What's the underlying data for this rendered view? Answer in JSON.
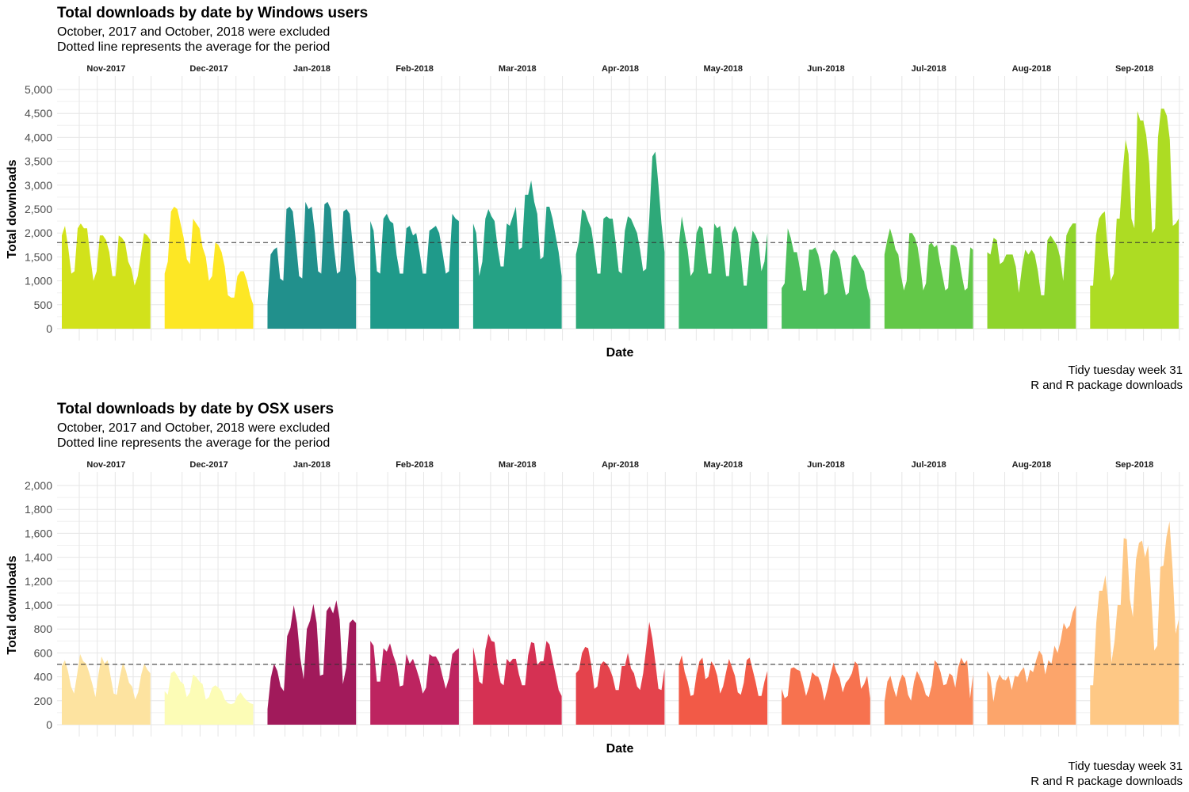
{
  "chart_data": [
    {
      "type": "area",
      "title": "Total downloads by date by Windows users",
      "subtitle_lines": [
        "October, 2017 and October, 2018 were excluded",
        "Dotted line represents the average for the period"
      ],
      "xlabel": "Date",
      "ylabel": "Total downloads",
      "caption_lines": [
        "Tidy tuesday week 31",
        "R and R package downloads"
      ],
      "ylim": [
        0,
        5300
      ],
      "yticks": [
        0,
        500,
        1000,
        1500,
        2000,
        2500,
        3000,
        3500,
        4000,
        4500,
        5000
      ],
      "yticklabels": [
        "0",
        "500",
        "1,000",
        "1,500",
        "2,000",
        "2,500",
        "3,000",
        "3,500",
        "4,000",
        "4,500",
        "5,000"
      ],
      "average": 1800,
      "grid": true,
      "legend": "none",
      "facets": [
        {
          "label": "Nov-2017",
          "color": "#d2e21b",
          "values": [
            1950,
            2150,
            1700,
            1150,
            1200,
            2100,
            2200,
            2100,
            2100,
            1500,
            1000,
            1200,
            1950,
            1950,
            1850,
            1600,
            1100,
            1100,
            1950,
            1900,
            1800,
            1400,
            1250,
            900,
            1100,
            1550,
            2000,
            1950,
            1850
          ]
        },
        {
          "label": "Dec-2017",
          "color": "#fde725",
          "values": [
            1150,
            1400,
            2450,
            2550,
            2500,
            2200,
            1900,
            1450,
            1350,
            2300,
            2200,
            2100,
            1700,
            1500,
            1000,
            1100,
            1800,
            1750,
            1600,
            1300,
            700,
            650,
            650,
            1100,
            1200,
            1200,
            1000,
            700,
            500
          ]
        },
        {
          "label": "Jan-2018",
          "color": "#21908c",
          "values": [
            550,
            1550,
            1650,
            1700,
            1050,
            1000,
            2500,
            2550,
            2450,
            1800,
            1100,
            1050,
            2650,
            2500,
            2550,
            2000,
            1200,
            1150,
            2600,
            2650,
            2500,
            1700,
            1150,
            1200,
            2450,
            2500,
            2400,
            1700,
            1050
          ]
        },
        {
          "label": "Feb-2018",
          "color": "#1f9a8a",
          "values": [
            2250,
            2050,
            1200,
            1150,
            2300,
            2400,
            2250,
            2200,
            1550,
            1150,
            1150,
            2100,
            2150,
            1950,
            2000,
            1600,
            1150,
            1150,
            2050,
            2100,
            2150,
            2000,
            1600,
            1150,
            1200,
            2400,
            2300,
            2250
          ]
        },
        {
          "label": "Mar-2018",
          "color": "#25a285",
          "values": [
            2200,
            2000,
            1100,
            1400,
            2300,
            2500,
            2350,
            2250,
            1700,
            1300,
            1300,
            2200,
            2150,
            2350,
            2550,
            1650,
            1700,
            2800,
            2800,
            3100,
            2650,
            2400,
            1450,
            1500,
            2550,
            2550,
            2300,
            1950,
            1600,
            1100
          ]
        },
        {
          "label": "Apr-2018",
          "color": "#2ea979",
          "values": [
            1550,
            1850,
            2500,
            2450,
            2250,
            2100,
            1650,
            1150,
            1150,
            2300,
            2350,
            2300,
            2300,
            1800,
            1200,
            1150,
            2050,
            2350,
            2300,
            2150,
            2000,
            1650,
            1200,
            1250,
            2300,
            3600,
            3700,
            3000,
            2200,
            1600
          ]
        },
        {
          "label": "May-2018",
          "color": "#3bb56b",
          "values": [
            1750,
            2350,
            2000,
            1650,
            1100,
            1200,
            2000,
            2150,
            2100,
            1600,
            1150,
            1150,
            2200,
            2100,
            2150,
            1700,
            1100,
            1100,
            2000,
            2150,
            2000,
            1550,
            900,
            900,
            1600,
            2050,
            1950,
            1800,
            1200,
            1400,
            2000
          ]
        },
        {
          "label": "Jun-2018",
          "color": "#4cbf5c",
          "values": [
            850,
            950,
            2100,
            1900,
            1600,
            1600,
            1250,
            800,
            800,
            1650,
            1650,
            1700,
            1550,
            1250,
            700,
            750,
            1550,
            1650,
            1600,
            1450,
            1050,
            700,
            750,
            1500,
            1550,
            1450,
            1300,
            1200,
            850,
            600
          ]
        },
        {
          "label": "Jul-2018",
          "color": "#63c848",
          "values": [
            1550,
            1850,
            2100,
            1900,
            1650,
            1550,
            1100,
            800,
            1000,
            2000,
            2000,
            1900,
            1700,
            1300,
            800,
            950,
            1750,
            1800,
            1700,
            1750,
            1400,
            1100,
            800,
            850,
            1750,
            1750,
            1700,
            1450,
            1100,
            800,
            850,
            1700,
            1650
          ]
        },
        {
          "label": "Aug-2018",
          "color": "#8fd42c",
          "values": [
            1600,
            1550,
            1900,
            1850,
            1350,
            1400,
            1550,
            1550,
            1550,
            1300,
            750,
            1300,
            1650,
            1550,
            1650,
            1550,
            1200,
            700,
            700,
            1850,
            1950,
            1850,
            1750,
            1500,
            1000,
            1950,
            2100,
            2200,
            2200
          ]
        },
        {
          "label": "Sep-2018",
          "color": "#addc23",
          "values": [
            900,
            900,
            1950,
            2300,
            2400,
            2450,
            1600,
            1000,
            1150,
            2300,
            2300,
            3250,
            3950,
            3650,
            2300,
            2100,
            4550,
            4350,
            4350,
            4050,
            3450,
            2000,
            2100,
            4000,
            4600,
            4600,
            4450,
            3950,
            2150,
            2200,
            2300
          ]
        }
      ]
    },
    {
      "type": "area",
      "title": "Total downloads by date by OSX users",
      "subtitle_lines": [
        "October, 2017 and October, 2018 were excluded",
        "Dotted line represents the average for the period"
      ],
      "xlabel": "Date",
      "ylabel": "Total downloads",
      "caption_lines": [
        "Tidy tuesday week 31",
        "R and R package downloads"
      ],
      "ylim": [
        0,
        2100
      ],
      "yticks": [
        0,
        200,
        400,
        600,
        800,
        1000,
        1200,
        1400,
        1600,
        1800,
        2000
      ],
      "yticklabels": [
        "0",
        "200",
        "400",
        "600",
        "800",
        "1,000",
        "1,200",
        "1,400",
        "1,600",
        "1,800",
        "2,000"
      ],
      "average": 505,
      "grid": true,
      "legend": "none",
      "facets": [
        {
          "label": "Nov-2017",
          "color": "#fde3a0",
          "values": [
            490,
            540,
            450,
            320,
            260,
            420,
            590,
            530,
            510,
            430,
            340,
            230,
            420,
            570,
            510,
            540,
            400,
            260,
            250,
            400,
            520,
            450,
            350,
            320,
            210,
            270,
            420,
            510,
            460,
            430
          ]
        },
        {
          "label": "Dec-2017",
          "color": "#fcfcb6",
          "values": [
            280,
            250,
            430,
            450,
            410,
            360,
            340,
            230,
            270,
            420,
            400,
            360,
            340,
            210,
            230,
            310,
            330,
            310,
            280,
            210,
            180,
            170,
            180,
            240,
            270,
            230,
            200,
            180,
            170
          ]
        },
        {
          "label": "Jan-2018",
          "color": "#a11a5b",
          "values": [
            130,
            390,
            510,
            450,
            320,
            280,
            740,
            810,
            1000,
            850,
            560,
            380,
            800,
            870,
            1010,
            850,
            410,
            420,
            950,
            990,
            930,
            1040,
            880,
            340,
            480,
            850,
            880,
            850
          ]
        },
        {
          "label": "Feb-2018",
          "color": "#bd2460",
          "values": [
            700,
            660,
            360,
            360,
            640,
            610,
            680,
            580,
            500,
            320,
            330,
            590,
            510,
            550,
            470,
            380,
            260,
            310,
            590,
            570,
            570,
            520,
            410,
            300,
            390,
            590,
            620,
            640
          ]
        },
        {
          "label": "Mar-2018",
          "color": "#d53153",
          "values": [
            650,
            520,
            360,
            340,
            630,
            760,
            700,
            690,
            480,
            350,
            330,
            550,
            520,
            550,
            550,
            420,
            330,
            330,
            580,
            690,
            680,
            500,
            530,
            530,
            700,
            670,
            540,
            420,
            290,
            240
          ]
        },
        {
          "label": "Apr-2018",
          "color": "#e4434c",
          "values": [
            430,
            460,
            600,
            650,
            640,
            500,
            300,
            320,
            500,
            530,
            510,
            470,
            400,
            290,
            290,
            490,
            490,
            600,
            470,
            430,
            320,
            290,
            430,
            640,
            860,
            720,
            520,
            300,
            290,
            470
          ]
        },
        {
          "label": "May-2018",
          "color": "#f25a47",
          "values": [
            500,
            580,
            440,
            360,
            240,
            250,
            420,
            530,
            560,
            380,
            400,
            530,
            490,
            410,
            260,
            320,
            440,
            550,
            480,
            410,
            270,
            250,
            350,
            540,
            560,
            460,
            360,
            240,
            240,
            360,
            450
          ]
        },
        {
          "label": "Jun-2018",
          "color": "#f7724f",
          "values": [
            300,
            220,
            240,
            470,
            480,
            460,
            450,
            350,
            240,
            320,
            440,
            410,
            400,
            330,
            200,
            300,
            420,
            520,
            440,
            390,
            270,
            350,
            380,
            430,
            530,
            500,
            300,
            340,
            410,
            220
          ]
        },
        {
          "label": "Jul-2018",
          "color": "#fa8a5a",
          "values": [
            190,
            360,
            410,
            310,
            230,
            350,
            420,
            390,
            250,
            200,
            360,
            450,
            400,
            340,
            250,
            230,
            330,
            540,
            510,
            440,
            330,
            340,
            430,
            410,
            310,
            480,
            560,
            510,
            540,
            220,
            420
          ]
        },
        {
          "label": "Aug-2018",
          "color": "#fca56b",
          "values": [
            450,
            400,
            190,
            350,
            420,
            380,
            370,
            410,
            290,
            410,
            400,
            450,
            480,
            350,
            460,
            440,
            540,
            620,
            580,
            420,
            540,
            510,
            660,
            600,
            700,
            850,
            800,
            830,
            940,
            1000
          ]
        },
        {
          "label": "Sep-2018",
          "color": "#fec885",
          "values": [
            330,
            330,
            850,
            1120,
            1120,
            1250,
            1000,
            520,
            700,
            1000,
            1000,
            1560,
            1550,
            1050,
            900,
            1380,
            1520,
            1540,
            1400,
            1500,
            1080,
            620,
            660,
            1320,
            1330,
            1570,
            1700,
            1300,
            760,
            880
          ]
        }
      ]
    }
  ]
}
